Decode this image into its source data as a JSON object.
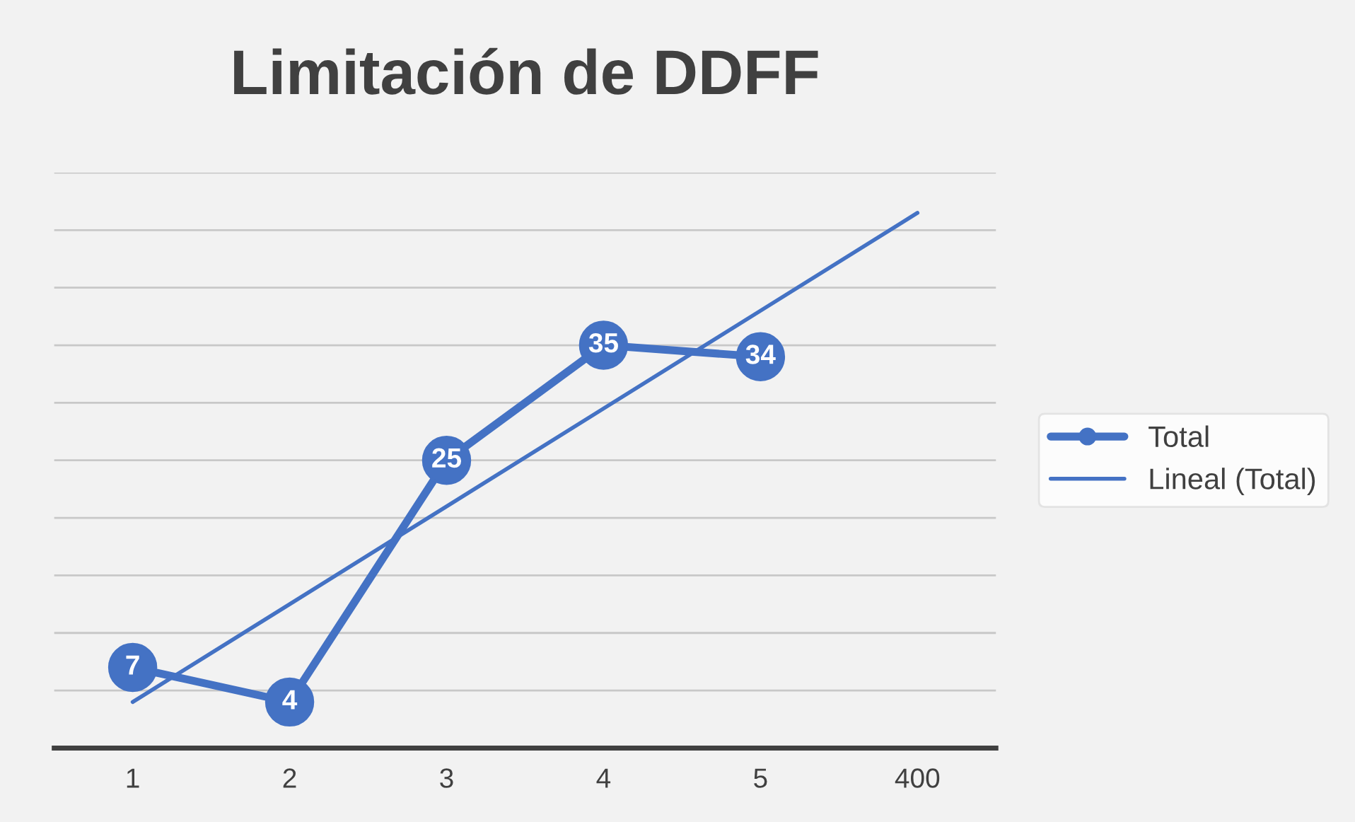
{
  "chart_data": {
    "type": "line",
    "title": "Limitación de DDFF",
    "categories": [
      "1",
      "2",
      "3",
      "4",
      "5",
      "400"
    ],
    "series": [
      {
        "name": "Total",
        "color": "#4472c4",
        "values": [
          7,
          4,
          25,
          35,
          34,
          null
        ],
        "value_labels": [
          "7",
          "4",
          "25",
          "35",
          "34",
          null
        ],
        "marker": "circle",
        "line_style": "solid"
      },
      {
        "name": "Lineal (Total)",
        "color": "#4472c4",
        "values": [
          4,
          12.5,
          21,
          29.5,
          38,
          46.5
        ],
        "marker": "none",
        "line_style": "solid"
      }
    ],
    "ylim": [
      0,
      50
    ],
    "yticks": [
      {
        "value": 0,
        "label": null
      },
      {
        "value": 5,
        "label": null
      },
      {
        "value": 10,
        "label": null
      },
      {
        "value": 15,
        "label": null
      },
      {
        "value": 20,
        "label": null
      },
      {
        "value": 25,
        "label": null
      },
      {
        "value": 30,
        "label": null
      },
      {
        "value": 35,
        "label": null
      },
      {
        "value": 40,
        "label": null
      },
      {
        "value": 45,
        "label": null
      },
      {
        "value": 50,
        "label": null
      }
    ],
    "tick_labels": "x",
    "grid": "y",
    "legend": "right"
  }
}
